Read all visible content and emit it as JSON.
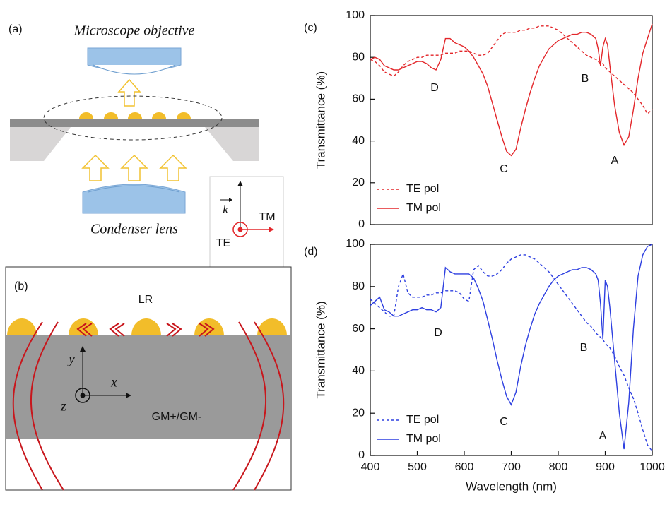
{
  "schematic": {
    "panel_a": {
      "label": "(a)",
      "objective": "Microscope objective",
      "condenser": "Condenser lens",
      "inset": {
        "k": "k",
        "tm": "TM",
        "te": "TE"
      }
    },
    "panel_b": {
      "label": "(b)",
      "lr": "LR",
      "medium": "GM+/GM-",
      "axes": {
        "x": "x",
        "y": "y",
        "z": "z"
      }
    }
  },
  "chart_data": [
    {
      "type": "line",
      "panel_label": "(c)",
      "ylabel": "Transmittance (%)",
      "xlim": [
        400,
        1000
      ],
      "ylim": [
        0,
        100
      ],
      "yticks": [
        0,
        20,
        40,
        60,
        80,
        100
      ],
      "grid": false,
      "legend": "lower-left",
      "annotations": [
        "D",
        "C",
        "B",
        "A"
      ],
      "x": [
        400,
        410,
        420,
        430,
        440,
        450,
        460,
        470,
        480,
        490,
        500,
        510,
        520,
        530,
        540,
        550,
        560,
        570,
        580,
        590,
        600,
        610,
        620,
        630,
        640,
        650,
        660,
        670,
        680,
        690,
        700,
        710,
        720,
        730,
        740,
        750,
        760,
        770,
        780,
        790,
        800,
        810,
        820,
        830,
        840,
        850,
        860,
        870,
        880,
        885,
        890,
        895,
        900,
        905,
        910,
        920,
        930,
        940,
        950,
        960,
        970,
        980,
        990,
        1000
      ],
      "series": [
        {
          "name": "TE pol",
          "color": "#e3262a",
          "linestyle": "dashed",
          "values": [
            79,
            78,
            76,
            73,
            72,
            71,
            73,
            76,
            78,
            79,
            80,
            80,
            81,
            81,
            81,
            81,
            82,
            82,
            82,
            83,
            83,
            83,
            82,
            81,
            81,
            82,
            85,
            88,
            91,
            92,
            92,
            92,
            93,
            93,
            94,
            94,
            95,
            95,
            95,
            94,
            93,
            91,
            89,
            87,
            85,
            83,
            81,
            80,
            79,
            78,
            77,
            77,
            75,
            74,
            73,
            71,
            69,
            67,
            65,
            63,
            60,
            57,
            53,
            55
          ]
        },
        {
          "name": "TM pol",
          "color": "#e3262a",
          "linestyle": "solid",
          "values": [
            79,
            80,
            79,
            76,
            75,
            74,
            74,
            75,
            76,
            77,
            78,
            78,
            77,
            75,
            74,
            79,
            89,
            89,
            87,
            86,
            85,
            83,
            80,
            76,
            72,
            66,
            58,
            50,
            42,
            35,
            33,
            36,
            46,
            55,
            63,
            70,
            76,
            80,
            84,
            86,
            88,
            89,
            90,
            91,
            91,
            92,
            92,
            91,
            89,
            84,
            76,
            85,
            89,
            86,
            76,
            57,
            44,
            38,
            42,
            55,
            70,
            82,
            89,
            96
          ]
        }
      ]
    },
    {
      "type": "line",
      "panel_label": "(d)",
      "ylabel": "Transmittance (%)",
      "xlabel": "Wavelength (nm)",
      "xlim": [
        400,
        1000
      ],
      "ylim": [
        0,
        100
      ],
      "xticks": [
        400,
        500,
        600,
        700,
        800,
        900,
        1000
      ],
      "yticks": [
        0,
        20,
        40,
        60,
        80,
        100
      ],
      "grid": false,
      "legend": "lower-left",
      "annotations": [
        "D",
        "C",
        "B",
        "A"
      ],
      "x": [
        400,
        410,
        420,
        430,
        440,
        450,
        460,
        470,
        480,
        490,
        500,
        510,
        520,
        530,
        540,
        550,
        560,
        570,
        580,
        590,
        600,
        610,
        620,
        630,
        640,
        650,
        660,
        670,
        680,
        690,
        700,
        710,
        720,
        730,
        740,
        750,
        760,
        770,
        780,
        790,
        800,
        810,
        820,
        830,
        840,
        850,
        860,
        870,
        880,
        885,
        890,
        895,
        900,
        905,
        910,
        920,
        930,
        940,
        950,
        960,
        970,
        980,
        990,
        1000
      ],
      "series": [
        {
          "name": "TE pol",
          "color": "#2d3fe0",
          "linestyle": "dashed",
          "values": [
            74,
            72,
            70,
            68,
            66,
            66,
            80,
            86,
            77,
            75,
            75,
            75,
            76,
            76,
            77,
            77,
            78,
            78,
            78,
            77,
            74,
            73,
            88,
            90,
            87,
            85,
            85,
            86,
            88,
            91,
            93,
            94,
            95,
            95,
            94,
            93,
            91,
            89,
            87,
            84,
            81,
            78,
            75,
            72,
            69,
            66,
            63,
            61,
            58,
            57,
            56,
            55,
            53,
            52,
            51,
            47,
            42,
            38,
            32,
            27,
            20,
            12,
            5,
            2
          ]
        },
        {
          "name": "TM pol",
          "color": "#2d3fe0",
          "linestyle": "solid",
          "values": [
            71,
            73,
            75,
            69,
            68,
            66,
            66,
            67,
            68,
            69,
            69,
            70,
            69,
            69,
            68,
            70,
            89,
            87,
            86,
            86,
            86,
            86,
            84,
            79,
            73,
            64,
            55,
            45,
            36,
            28,
            24,
            30,
            42,
            52,
            60,
            67,
            72,
            76,
            80,
            83,
            85,
            86,
            87,
            88,
            88,
            89,
            89,
            88,
            86,
            83,
            72,
            55,
            83,
            80,
            70,
            45,
            20,
            3,
            25,
            60,
            85,
            95,
            99,
            100
          ]
        }
      ]
    }
  ]
}
